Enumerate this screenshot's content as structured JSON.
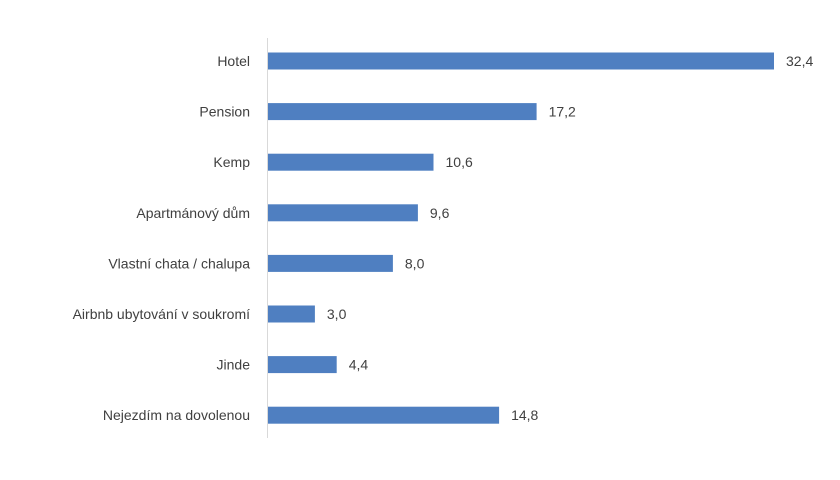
{
  "chart_data": {
    "type": "bar",
    "orientation": "horizontal",
    "categories": [
      "Hotel",
      "Pension",
      "Kemp",
      "Apartmánový dům",
      "Vlastní chata / chalupa",
      "Airbnb ubytování v soukromí",
      "Jinde",
      "Nejezdím na dovolenou"
    ],
    "values": [
      32.4,
      17.2,
      10.6,
      9.6,
      8.0,
      3.0,
      4.4,
      14.8
    ],
    "value_labels": [
      "32,4",
      "17,2",
      "10,6",
      "9,6",
      "8,0",
      "3,0",
      "4,4",
      "14,8"
    ],
    "title": "",
    "xlabel": "",
    "ylabel": "",
    "xlim": [
      0,
      32.4
    ],
    "grid": false,
    "legend": "none",
    "bar_color": "#4f7fc1",
    "axis_color": "#d9d9d9",
    "text_color": "#404040"
  }
}
